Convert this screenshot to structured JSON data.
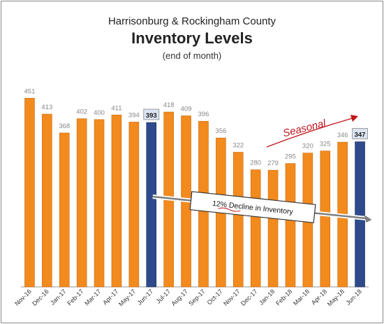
{
  "chart_data": {
    "type": "bar",
    "title": "Inventory Levels",
    "supertitle": "Harrisonburg & Rockingham County",
    "subtitle": "(end of month)",
    "categories": [
      "Nov-16",
      "Dec-16",
      "Jan-17",
      "Feb-17",
      "Mar-17",
      "Apr-17",
      "May-17",
      "Jun-17",
      "Jul-17",
      "Aug-17",
      "Sep-17",
      "Oct-17",
      "Nov-17",
      "Dec-17",
      "Jan-18",
      "Feb-18",
      "Mar-18",
      "Apr-18",
      "May-18",
      "Jun-18"
    ],
    "values": [
      451,
      413,
      368,
      402,
      400,
      411,
      394,
      393,
      418,
      409,
      396,
      356,
      322,
      280,
      279,
      295,
      320,
      325,
      346,
      347
    ],
    "highlighted_categories": [
      "Jun-17",
      "Jun-18"
    ],
    "ylim": [
      0,
      480
    ],
    "grid": false,
    "legend": "none",
    "annotations": {
      "trend_label": "12% Decline in Inventory",
      "seasonal_label": "Seasonal"
    },
    "colors": {
      "bar": "#f28a1e",
      "highlight_bar": "#2e4a8c",
      "highlight_label_bg": "#dbe4f1",
      "value_label": "#888888",
      "trend_arrow": "#7f7f7f",
      "seasonal": "#c0161c"
    }
  }
}
